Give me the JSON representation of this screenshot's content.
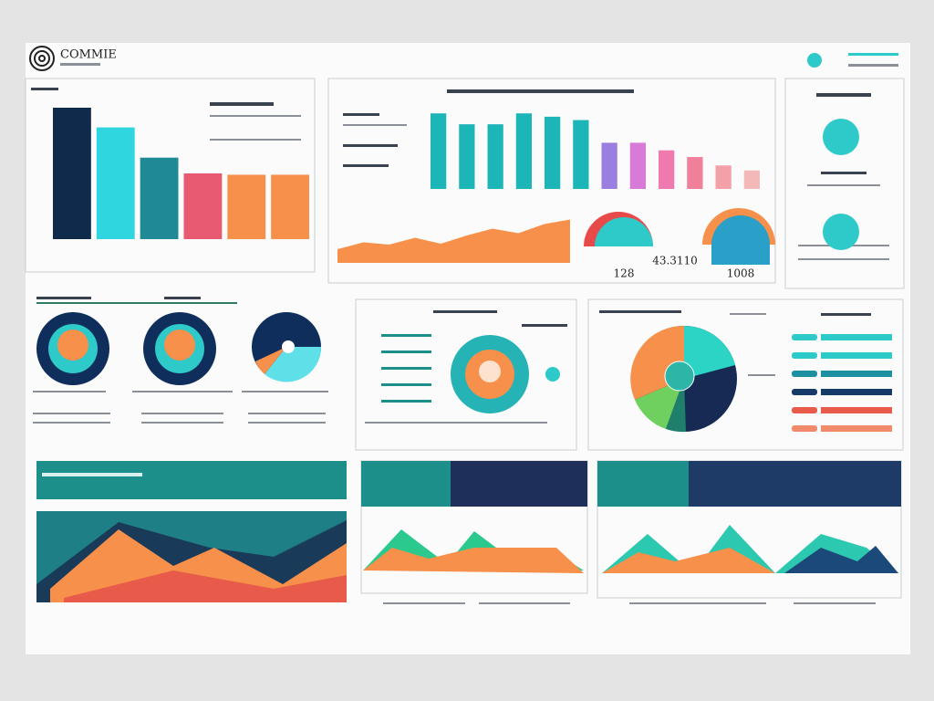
{
  "header": {
    "logo": "COMMIE"
  },
  "kpis": [
    "128",
    "43.3110",
    "1008"
  ],
  "bar_chart": {
    "type": "bar",
    "ylim": [
      0,
      100
    ],
    "values": [
      100,
      85,
      62,
      50,
      49,
      49
    ],
    "colors": [
      "#102a4c",
      "#2fd6e0",
      "#1f8a96",
      "#e85a72",
      "#f6904a",
      "#f6904a"
    ]
  },
  "column_chart": {
    "type": "bar",
    "ylim": [
      0,
      100
    ],
    "values": [
      90,
      77,
      77,
      90,
      86,
      82,
      55,
      55,
      46,
      38,
      28,
      22
    ],
    "colors": [
      "#1cb5b8",
      "#1cb5b8",
      "#1cb5b8",
      "#1cb5b8",
      "#1cb5b8",
      "#1cb5b8",
      "#9b7fe0",
      "#d87ad8",
      "#f07ab0",
      "#f0809a",
      "#f4a0a8",
      "#f4b8b8"
    ]
  },
  "area_chart": {
    "type": "area",
    "ylim": [
      0,
      100
    ],
    "values": [
      30,
      45,
      40,
      55,
      42,
      60,
      75,
      65,
      85,
      95
    ],
    "color": "#f6904a"
  }
}
